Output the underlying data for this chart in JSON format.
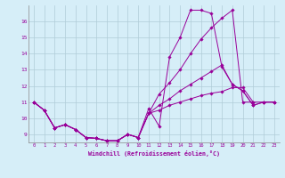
{
  "xlabel": "Windchill (Refroidissement éolien,°C)",
  "x_ticks": [
    0,
    1,
    2,
    3,
    4,
    5,
    6,
    7,
    8,
    9,
    10,
    11,
    12,
    13,
    14,
    15,
    16,
    17,
    18,
    19,
    20,
    21,
    22,
    23
  ],
  "ylim": [
    8.5,
    17.0
  ],
  "yticks": [
    9,
    10,
    11,
    12,
    13,
    14,
    15,
    16
  ],
  "line_color": "#990099",
  "bg_color": "#d6eef8",
  "grid_color": "#b0ccd8",
  "lines": [
    {
      "x": [
        0,
        1,
        2,
        3,
        4,
        5,
        6,
        7,
        8,
        9,
        10,
        11,
        12,
        13,
        14,
        15,
        16,
        17,
        18,
        19,
        20,
        21,
        22,
        23
      ],
      "y": [
        11.0,
        10.5,
        9.4,
        9.6,
        9.3,
        8.8,
        8.75,
        8.6,
        8.6,
        9.0,
        8.8,
        10.6,
        9.5,
        13.8,
        15.0,
        16.7,
        16.7,
        16.5,
        13.2,
        12.1,
        11.7,
        10.8,
        11.0,
        11.0
      ]
    },
    {
      "x": [
        0,
        1,
        2,
        3,
        4,
        5,
        6,
        7,
        8,
        9,
        10,
        11,
        12,
        13,
        14,
        15,
        16,
        17,
        18,
        19,
        20,
        21,
        22,
        23
      ],
      "y": [
        11.0,
        10.5,
        9.4,
        9.6,
        9.3,
        8.8,
        8.75,
        8.6,
        8.6,
        9.0,
        8.8,
        10.3,
        11.5,
        12.2,
        13.0,
        14.0,
        14.9,
        15.6,
        16.2,
        16.7,
        11.0,
        11.0,
        null,
        null
      ]
    },
    {
      "x": [
        0,
        1,
        2,
        3,
        4,
        5,
        6,
        7,
        8,
        9,
        10,
        11,
        12,
        13,
        14,
        15,
        16,
        17,
        18,
        19,
        20,
        21,
        22,
        23
      ],
      "y": [
        11.0,
        10.5,
        9.4,
        9.6,
        9.3,
        8.8,
        8.75,
        8.6,
        8.6,
        9.0,
        8.8,
        10.3,
        10.8,
        11.2,
        11.7,
        12.1,
        12.5,
        12.9,
        13.3,
        12.1,
        11.7,
        10.8,
        11.0,
        11.0
      ]
    },
    {
      "x": [
        0,
        1,
        2,
        3,
        4,
        5,
        6,
        7,
        8,
        9,
        10,
        11,
        12,
        13,
        14,
        15,
        16,
        17,
        18,
        19,
        20,
        21,
        22,
        23
      ],
      "y": [
        11.0,
        10.5,
        9.4,
        9.6,
        9.3,
        8.8,
        8.75,
        8.6,
        8.6,
        9.0,
        8.8,
        10.3,
        10.5,
        10.8,
        11.0,
        11.2,
        11.4,
        11.55,
        11.65,
        11.9,
        11.9,
        11.0,
        11.0,
        11.0
      ]
    }
  ]
}
